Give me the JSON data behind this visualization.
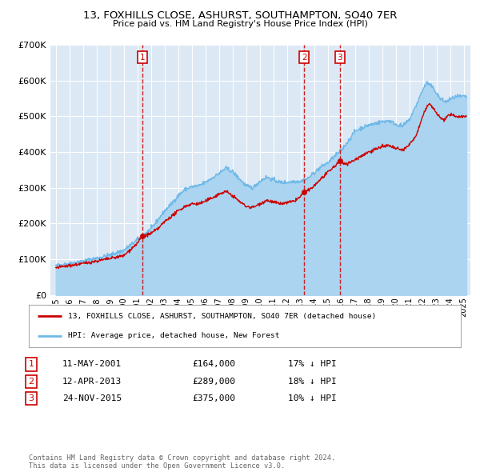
{
  "title": "13, FOXHILLS CLOSE, ASHURST, SOUTHAMPTON, SO40 7ER",
  "subtitle": "Price paid vs. HM Land Registry's House Price Index (HPI)",
  "background_color": "#ffffff",
  "chart_bg_color": "#dce9f5",
  "grid_color": "#ffffff",
  "sale_color": "#cc0000",
  "hpi_color": "#6eb8e8",
  "hpi_fill_color": "#aad4f0",
  "sale_label": "13, FOXHILLS CLOSE, ASHURST, SOUTHAMPTON, SO40 7ER (detached house)",
  "hpi_label": "HPI: Average price, detached house, New Forest",
  "transactions": [
    {
      "num": 1,
      "date": "11-MAY-2001",
      "date_dec": 2001.36,
      "price": 164000,
      "pct": "17% ↓ HPI"
    },
    {
      "num": 2,
      "date": "12-APR-2013",
      "date_dec": 2013.28,
      "price": 289000,
      "pct": "18% ↓ HPI"
    },
    {
      "num": 3,
      "date": "24-NOV-2015",
      "date_dec": 2015.9,
      "price": 375000,
      "pct": "10% ↓ HPI"
    }
  ],
  "vline_color": "#cc0000",
  "marker_color": "#cc0000",
  "ylim": [
    0,
    700000
  ],
  "xlim_start": 1994.6,
  "xlim_end": 2025.5,
  "yticks": [
    0,
    100000,
    200000,
    300000,
    400000,
    500000,
    600000,
    700000
  ],
  "ytick_labels": [
    "£0",
    "£100K",
    "£200K",
    "£300K",
    "£400K",
    "£500K",
    "£600K",
    "£700K"
  ],
  "xticks": [
    1995,
    1996,
    1997,
    1998,
    1999,
    2000,
    2001,
    2002,
    2003,
    2004,
    2005,
    2006,
    2007,
    2008,
    2009,
    2010,
    2011,
    2012,
    2013,
    2014,
    2015,
    2016,
    2017,
    2018,
    2019,
    2020,
    2021,
    2022,
    2023,
    2024,
    2025
  ],
  "footer": "Contains HM Land Registry data © Crown copyright and database right 2024.\nThis data is licensed under the Open Government Licence v3.0.",
  "num_box_color": "#cc0000",
  "legend_border_color": "#aaaaaa"
}
